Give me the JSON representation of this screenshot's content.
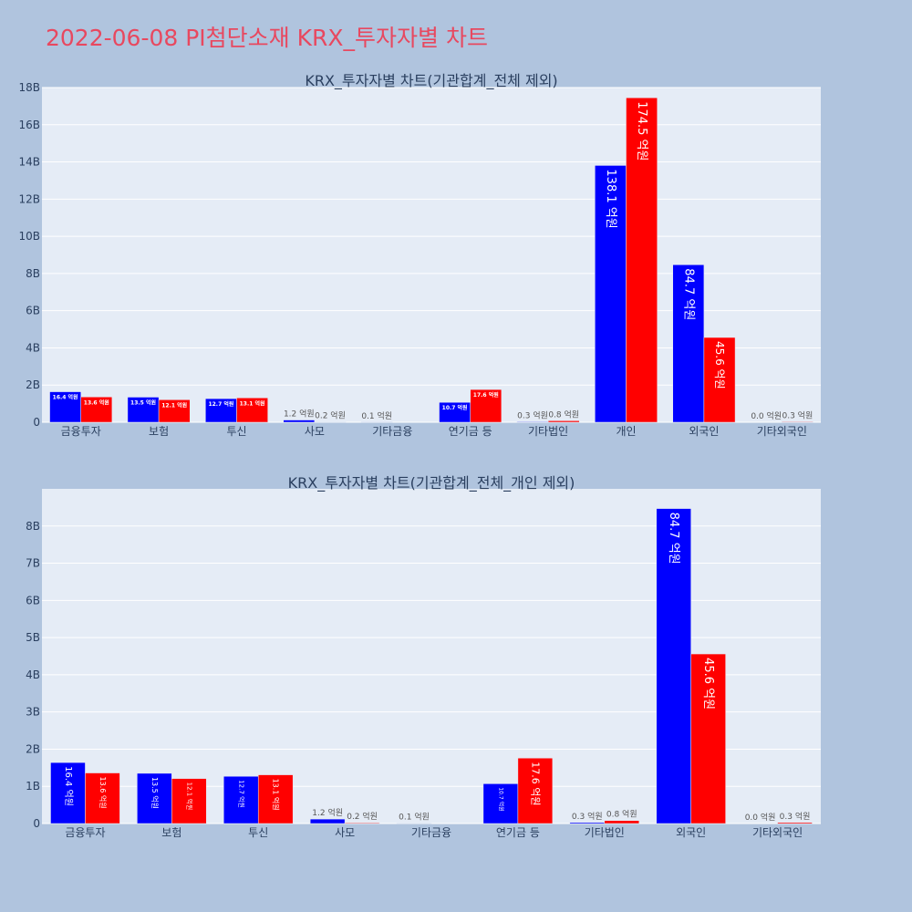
{
  "page_title": "2022-06-08 PI첨단소재 KRX_투자자별 차트",
  "colors": {
    "buy": "#0000ff",
    "sell": "#ff0000",
    "plot_bg": "#e5ecf6",
    "title": "#e8485f"
  },
  "chart_data": [
    {
      "type": "bar",
      "title": "KRX_투자자별 차트(기관합계_전체 제외)",
      "categories": [
        "금융투자",
        "보험",
        "투신",
        "사모",
        "기타금융",
        "연기금 등",
        "기타법인",
        "개인",
        "외국인",
        "기타외국인"
      ],
      "series": [
        {
          "name": "buy",
          "values": [
            1640000000,
            1350000000,
            1270000000,
            120000000,
            10000000,
            1070000000,
            30000000,
            13810000000,
            8470000000,
            0
          ],
          "labels": [
            "16.4 억원",
            "13.5 억원",
            "12.7 억원",
            "1.2 억원",
            "0.1 억원",
            "10.7 억원",
            "0.3 억원",
            "138.1 억원",
            "84.7 억원",
            "0.0 억원"
          ]
        },
        {
          "name": "sell",
          "values": [
            1360000000,
            1210000000,
            1310000000,
            20000000,
            0,
            1760000000,
            80000000,
            17450000000,
            4560000000,
            30000000
          ],
          "labels": [
            "13.6 억원",
            "12.1 억원",
            "13.1 억원",
            "0.2 억원",
            "",
            "17.6 억원",
            "0.8 억원",
            "174.5 억원",
            "45.6 억원",
            "0.3 억원"
          ]
        }
      ],
      "ylim": [
        0,
        18000000000
      ],
      "yticks": [
        0,
        2000000000,
        4000000000,
        6000000000,
        8000000000,
        10000000000,
        12000000000,
        14000000000,
        16000000000,
        18000000000
      ],
      "ytick_labels": [
        "0",
        "2B",
        "4B",
        "6B",
        "8B",
        "10B",
        "12B",
        "14B",
        "16B",
        "18B"
      ]
    },
    {
      "type": "bar",
      "title": "KRX_투자자별 차트(기관합계_전체_개인 제외)",
      "categories": [
        "금융투자",
        "보험",
        "투신",
        "사모",
        "기타금융",
        "연기금 등",
        "기타법인",
        "외국인",
        "기타외국인"
      ],
      "series": [
        {
          "name": "buy",
          "values": [
            1640000000,
            1350000000,
            1270000000,
            120000000,
            10000000,
            1070000000,
            30000000,
            8470000000,
            0
          ],
          "labels": [
            "16.4 억원",
            "13.5 억원",
            "12.7 억원",
            "1.2 억원",
            "0.1 억원",
            "10.7 억원",
            "0.3 억원",
            "84.7 억원",
            "0.0 억원"
          ]
        },
        {
          "name": "sell",
          "values": [
            1360000000,
            1210000000,
            1310000000,
            20000000,
            0,
            1760000000,
            80000000,
            4560000000,
            30000000
          ],
          "labels": [
            "13.6 억원",
            "12.1 억원",
            "13.1 억원",
            "0.2 억원",
            "",
            "17.6 억원",
            "0.8 억원",
            "45.6 억원",
            "0.3 억원"
          ]
        }
      ],
      "ylim": [
        0,
        9000000000
      ],
      "yticks": [
        0,
        1000000000,
        2000000000,
        3000000000,
        4000000000,
        5000000000,
        6000000000,
        7000000000,
        8000000000
      ],
      "ytick_labels": [
        "0",
        "1B",
        "2B",
        "3B",
        "4B",
        "5B",
        "6B",
        "7B",
        "8B"
      ]
    }
  ]
}
